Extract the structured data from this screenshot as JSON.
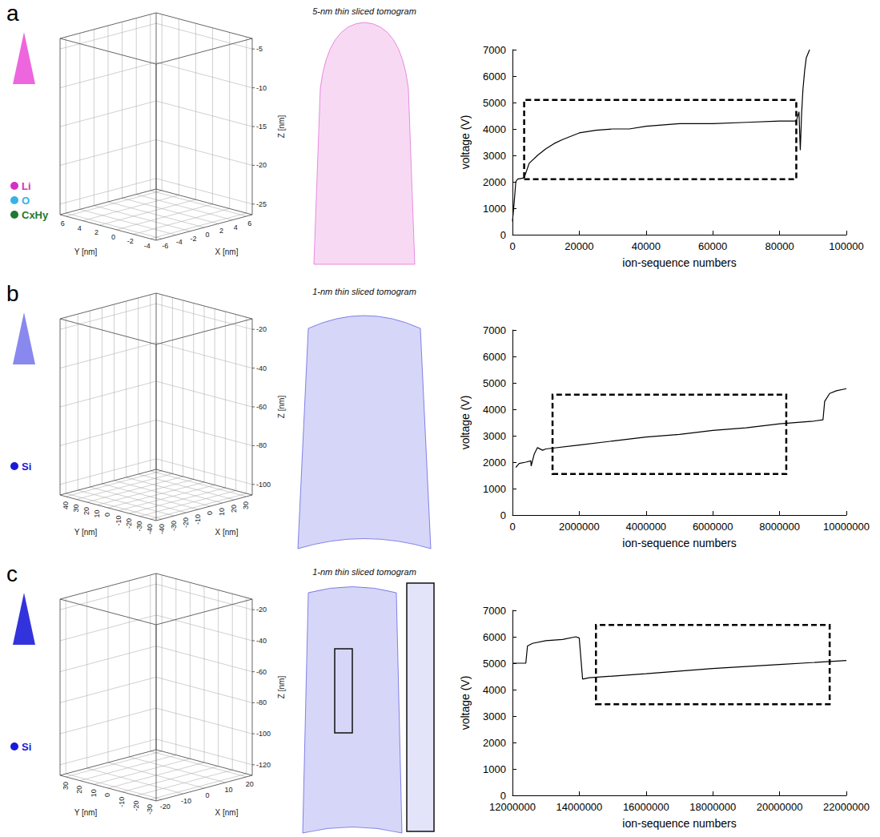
{
  "panels": [
    {
      "letter": "a",
      "triangle_color": "#ee66dd",
      "species": [
        {
          "name": "Li",
          "color": "#d62fc4"
        },
        {
          "name": "O",
          "color": "#35b3e6"
        },
        {
          "name": "CxHy",
          "color": "#1f7a32"
        }
      ],
      "axes3d": {
        "x_label": "X [nm]",
        "y_label": "Y [nm]",
        "z_label": "Z [nm]",
        "xticks": [
          -6,
          -4,
          -2,
          0,
          2,
          4,
          6
        ],
        "yticks": [
          -4,
          -2,
          0,
          2,
          4,
          6
        ],
        "zticks": [
          -25,
          -20,
          -15,
          -10,
          -5
        ]
      },
      "tomogram_title": "5-nm thin sliced tomogram"
    },
    {
      "letter": "b",
      "triangle_color": "#8888ee",
      "species": [
        {
          "name": "Si",
          "color": "#1a1ad6"
        }
      ],
      "axes3d": {
        "x_label": "X [nm]",
        "y_label": "Y [nm]",
        "z_label": "Z [nm]",
        "xticks": [
          -40,
          -30,
          -20,
          -10,
          0,
          10,
          20,
          30
        ],
        "yticks": [
          -40,
          -30,
          -20,
          -10,
          0,
          10,
          20,
          30,
          40
        ],
        "zticks": [
          -100,
          -80,
          -60,
          -40,
          -20
        ]
      },
      "tomogram_title": "1-nm thin sliced tomogram"
    },
    {
      "letter": "c",
      "triangle_color": "#3333dd",
      "species": [
        {
          "name": "Si",
          "color": "#1a1ad6"
        }
      ],
      "axes3d": {
        "x_label": "X [nm]",
        "y_label": "Y [nm]",
        "z_label": "Z [nm]",
        "xticks": [
          -20,
          -10,
          0,
          10,
          20
        ],
        "yticks": [
          -30,
          -20,
          -10,
          0,
          10,
          20,
          30
        ],
        "zticks": [
          -120,
          -100,
          -80,
          -60,
          -40,
          -20
        ]
      },
      "tomogram_title": "1-nm thin sliced tomogram"
    }
  ],
  "chart_data": [
    {
      "type": "line",
      "xlabel": "ion-sequence numbers",
      "ylabel": "voltage (V)",
      "color": "#000000",
      "grid": false,
      "x": [
        0,
        500,
        1000,
        1500,
        3500,
        5000,
        7500,
        10000,
        12500,
        15000,
        20000,
        25000,
        30000,
        35000,
        40000,
        50000,
        60000,
        70000,
        80000,
        85000,
        85800,
        86200,
        86600,
        87000,
        87500,
        88000,
        89000
      ],
      "values": [
        500,
        1200,
        2000,
        2100,
        2150,
        2700,
        3000,
        3250,
        3450,
        3600,
        3850,
        3950,
        4000,
        4000,
        4100,
        4200,
        4200,
        4250,
        4300,
        4300,
        4650,
        3200,
        4600,
        5500,
        6200,
        6700,
        7000
      ],
      "xlim": [
        0,
        100000
      ],
      "xticks": [
        0,
        20000,
        40000,
        60000,
        80000,
        100000
      ],
      "ylim": [
        0,
        7000
      ],
      "yticks": [
        0,
        1000,
        2000,
        3000,
        4000,
        5000,
        6000,
        7000
      ],
      "selection": {
        "x": [
          3500,
          85000
        ],
        "y": [
          2100,
          5100
        ]
      }
    },
    {
      "type": "line",
      "xlabel": "ion-sequence numbers",
      "ylabel": "voltage (V)",
      "color": "#000000",
      "grid": false,
      "x": [
        100000,
        200000,
        400000,
        550000,
        560000,
        650000,
        750000,
        900000,
        1000000,
        2000000,
        3000000,
        4000000,
        5000000,
        6000000,
        7000000,
        8000000,
        9000000,
        9300000,
        9350000,
        9500000,
        9700000,
        10000000
      ],
      "values": [
        1800,
        1950,
        2000,
        2050,
        1850,
        2300,
        2550,
        2450,
        2500,
        2650,
        2800,
        2950,
        3050,
        3200,
        3300,
        3450,
        3550,
        3600,
        4300,
        4600,
        4700,
        4780
      ],
      "xlim": [
        0,
        10000000
      ],
      "xticks": [
        0,
        2000000,
        4000000,
        6000000,
        8000000,
        10000000
      ],
      "ylim": [
        0,
        7000
      ],
      "yticks": [
        0,
        1000,
        2000,
        3000,
        4000,
        5000,
        6000,
        7000
      ],
      "selection": {
        "x": [
          1200000,
          8200000
        ],
        "y": [
          1550,
          4550
        ]
      }
    },
    {
      "type": "line",
      "xlabel": "ion-sequence numbers",
      "ylabel": "voltage (V)",
      "color": "#000000",
      "grid": false,
      "x": [
        12000000,
        12400000,
        12450000,
        12600000,
        13000000,
        13500000,
        13900000,
        14000000,
        14100000,
        14300000,
        16000000,
        18000000,
        20000000,
        22000000
      ],
      "values": [
        5000,
        5000,
        5650,
        5750,
        5850,
        5900,
        6000,
        5950,
        4400,
        4450,
        4600,
        4800,
        4950,
        5100
      ],
      "xlim": [
        12000000,
        22000000
      ],
      "xticks": [
        12000000,
        14000000,
        16000000,
        18000000,
        20000000,
        22000000
      ],
      "ylim": [
        0,
        7000
      ],
      "yticks": [
        0,
        1000,
        2000,
        3000,
        4000,
        5000,
        6000,
        7000
      ],
      "selection": {
        "x": [
          14500000,
          21500000
        ],
        "y": [
          3450,
          6450
        ]
      }
    }
  ]
}
